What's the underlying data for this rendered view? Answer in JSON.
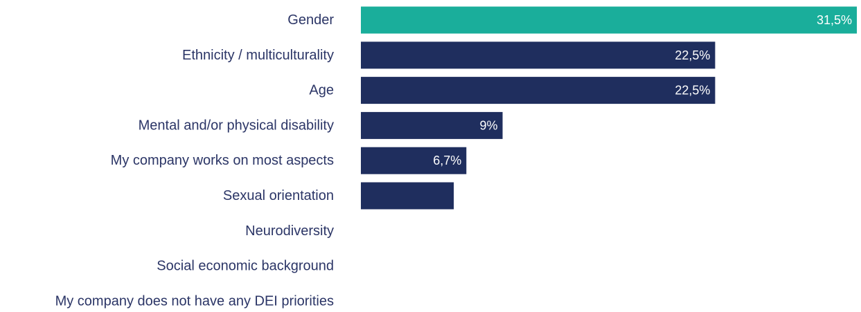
{
  "chart_data": {
    "type": "bar",
    "orientation": "horizontal",
    "categories": [
      "Gender",
      "Ethnicity / multiculturality",
      "Age",
      "Mental and/or physical disability",
      "My company works on most aspects",
      "Sexual orientation",
      "Neurodiversity",
      "Social economic background",
      "My company does not have any DEI priorities"
    ],
    "values": [
      31.5,
      22.5,
      22.5,
      9,
      6.7,
      5.9,
      0,
      0,
      0
    ],
    "value_labels": [
      "31,5%",
      "22,5%",
      "22,5%",
      "9%",
      "6,7%",
      "",
      "",
      "",
      ""
    ],
    "xlim": [
      0,
      31.5
    ],
    "grid": false,
    "legend": "none",
    "colors": {
      "highlight": "#1aae9b",
      "default": "#1f2e5e",
      "label_text": "#2b3566",
      "value_text": "#ffffff"
    },
    "highlight_index": 0
  }
}
